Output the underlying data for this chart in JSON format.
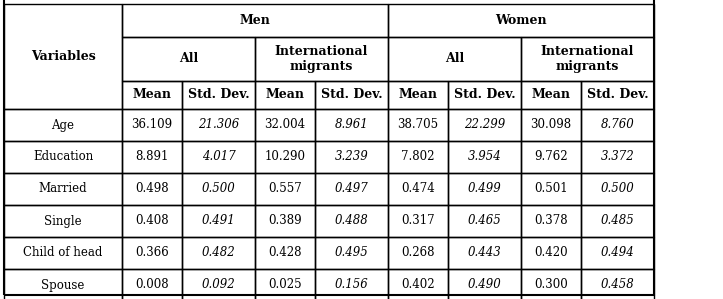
{
  "col1_header": "Variables",
  "level1_headers": [
    "Men",
    "Women"
  ],
  "level2_headers": [
    "All",
    "International\nmigrants",
    "All",
    "International\nmigrants"
  ],
  "level3_headers": [
    "Mean",
    "Std. Dev.",
    "Mean",
    "Std. Dev.",
    "Mean",
    "Std. Dev.",
    "Mean",
    "Std. Dev."
  ],
  "rows": [
    {
      "label": "Age",
      "values": [
        "36.109",
        "21.306",
        "32.004",
        "8.961",
        "38.705",
        "22.299",
        "30.098",
        "8.760"
      ]
    },
    {
      "label": "Education",
      "values": [
        "8.891",
        "4.017",
        "10.290",
        "3.239",
        "7.802",
        "3.954",
        "9.762",
        "3.372"
      ]
    },
    {
      "label": "Married",
      "values": [
        "0.498",
        "0.500",
        "0.557",
        "0.497",
        "0.474",
        "0.499",
        "0.501",
        "0.500"
      ]
    },
    {
      "label": "Single",
      "values": [
        "0.408",
        "0.491",
        "0.389",
        "0.488",
        "0.317",
        "0.465",
        "0.378",
        "0.485"
      ]
    },
    {
      "label": "Child of head",
      "values": [
        "0.366",
        "0.482",
        "0.428",
        "0.495",
        "0.268",
        "0.443",
        "0.420",
        "0.494"
      ]
    },
    {
      "label": "Spouse",
      "values": [
        "0.008",
        "0.092",
        "0.025",
        "0.156",
        "0.402",
        "0.490",
        "0.300",
        "0.458"
      ]
    }
  ],
  "italic_cols": [
    1,
    3,
    5,
    7
  ],
  "bg_color": "white",
  "line_color": "black",
  "font_size": 8.5,
  "header_font_size": 9.0
}
